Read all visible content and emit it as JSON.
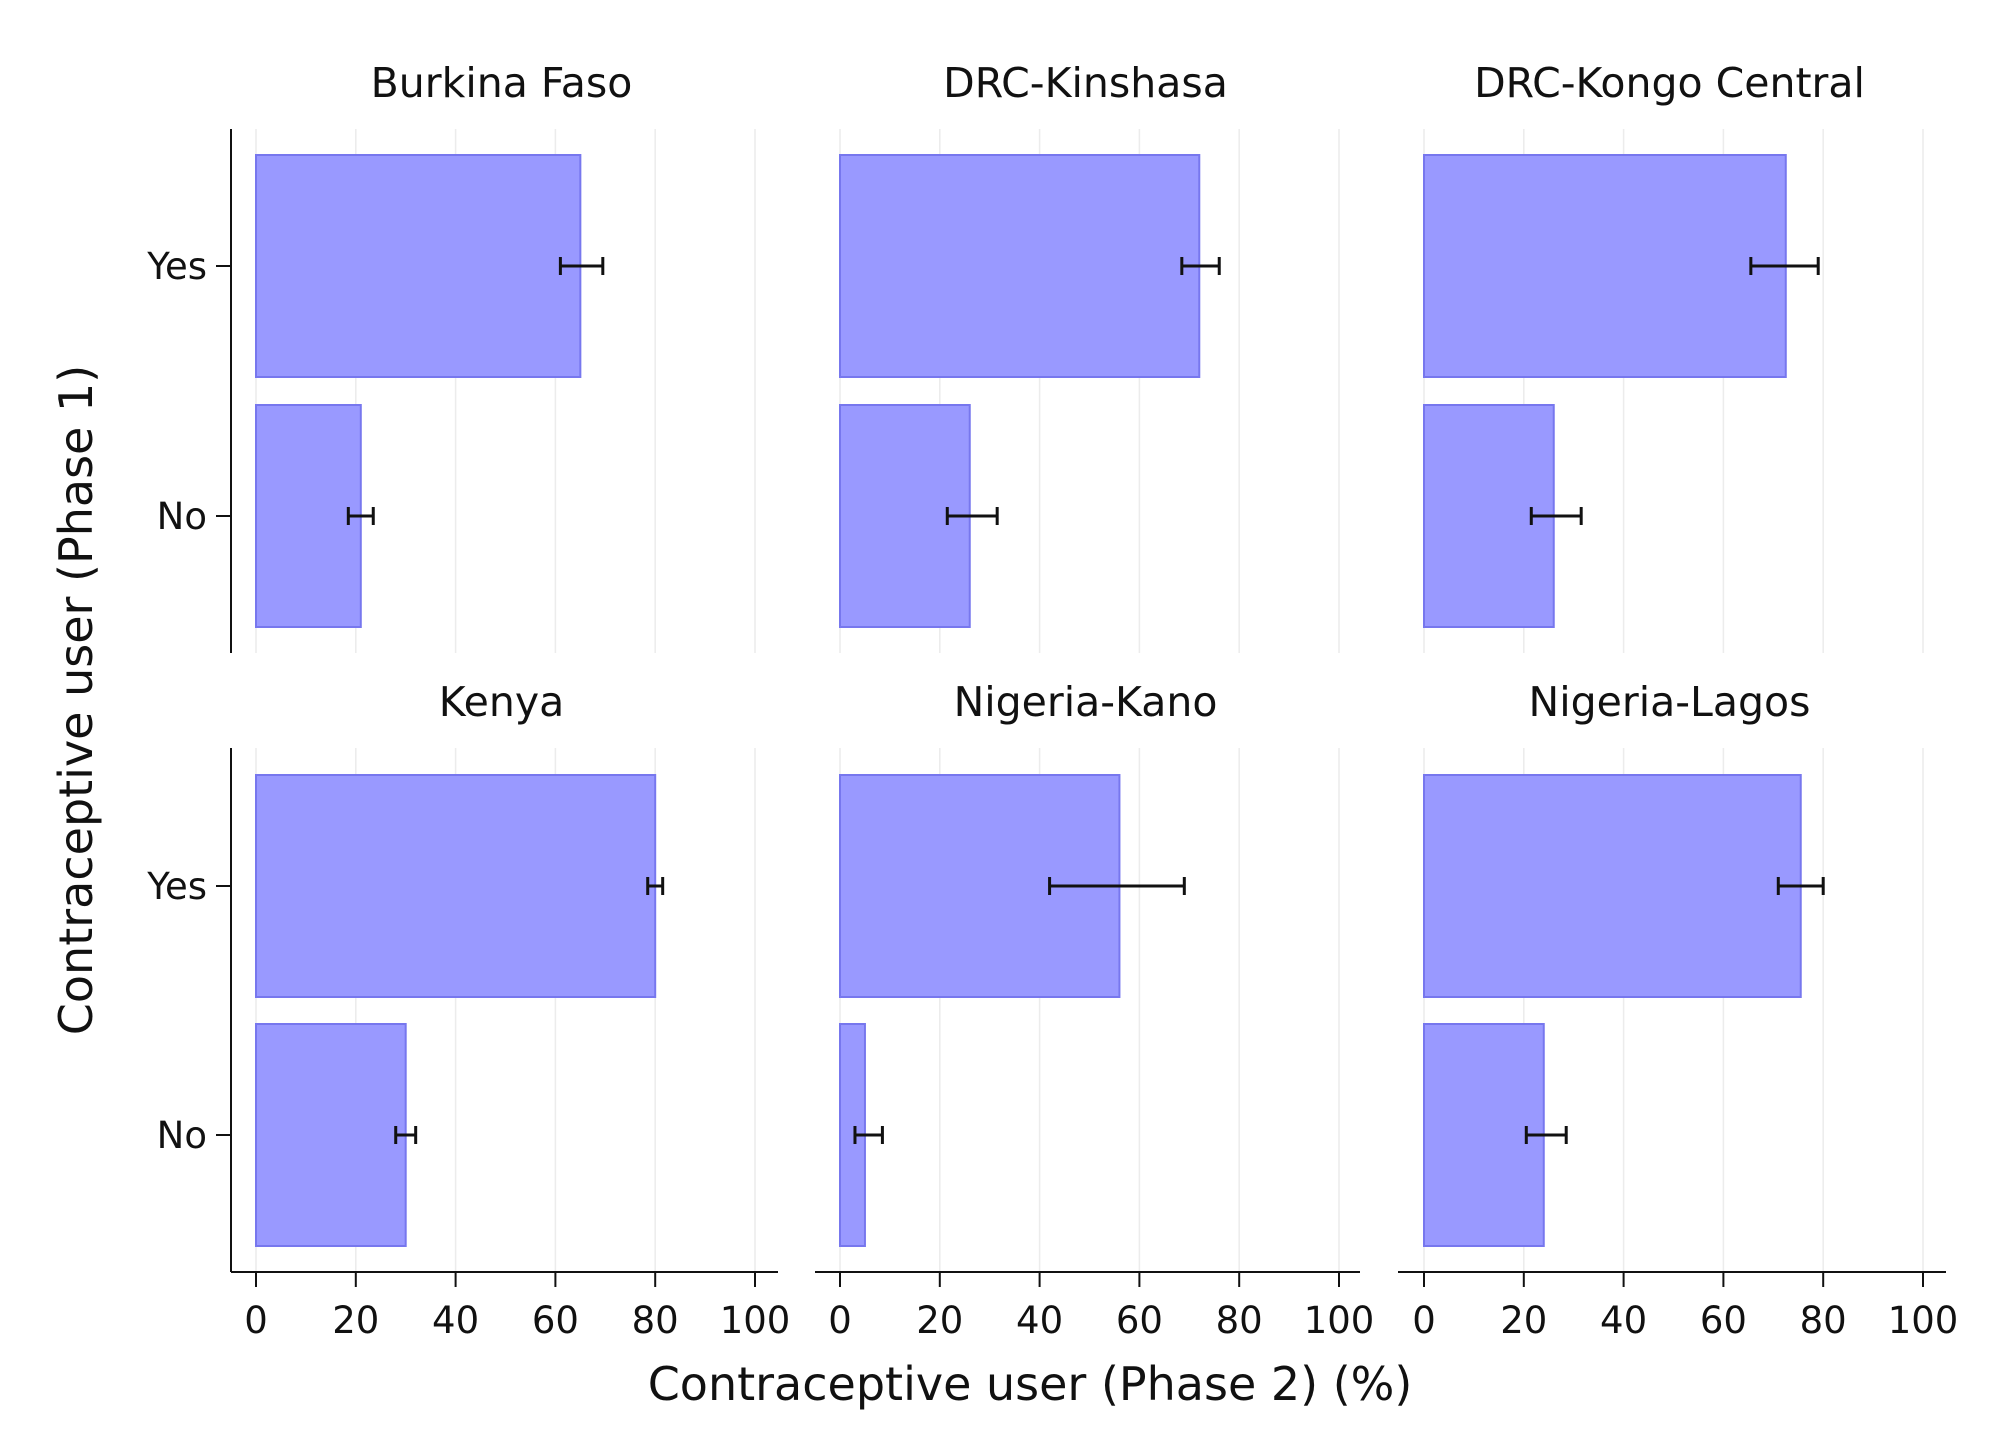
{
  "chart_data": {
    "type": "bar",
    "orientation": "horizontal",
    "xlabel": "Contraceptive user (Phase 2) (%)",
    "ylabel": "Contraceptive user (Phase 1)",
    "categories": [
      "Yes",
      "No"
    ],
    "xlim": [
      0,
      100
    ],
    "xticks": [
      0,
      20,
      40,
      60,
      80,
      100
    ],
    "grid": "vertical",
    "bar_color": "#9999ff",
    "bar_edge_color": "#7777ee",
    "errorbar_color": "#111111",
    "panels": [
      {
        "title": "Burkina Faso",
        "bars": [
          {
            "category": "Yes",
            "value": 65,
            "ci_low": 61,
            "ci_high": 69.5
          },
          {
            "category": "No",
            "value": 21,
            "ci_low": 18.5,
            "ci_high": 23.5
          }
        ]
      },
      {
        "title": "DRC-Kinshasa",
        "bars": [
          {
            "category": "Yes",
            "value": 72,
            "ci_low": 68.5,
            "ci_high": 76
          },
          {
            "category": "No",
            "value": 26,
            "ci_low": 21.5,
            "ci_high": 31.5
          }
        ]
      },
      {
        "title": "DRC-Kongo Central",
        "bars": [
          {
            "category": "Yes",
            "value": 72.5,
            "ci_low": 65.5,
            "ci_high": 79
          },
          {
            "category": "No",
            "value": 26,
            "ci_low": 21.5,
            "ci_high": 31.5
          }
        ]
      },
      {
        "title": "Kenya",
        "bars": [
          {
            "category": "Yes",
            "value": 80,
            "ci_low": 78.5,
            "ci_high": 81.5
          },
          {
            "category": "No",
            "value": 30,
            "ci_low": 28,
            "ci_high": 32
          }
        ]
      },
      {
        "title": "Nigeria-Kano",
        "bars": [
          {
            "category": "Yes",
            "value": 56,
            "ci_low": 42,
            "ci_high": 69
          },
          {
            "category": "No",
            "value": 5,
            "ci_low": 3,
            "ci_high": 8.5
          }
        ]
      },
      {
        "title": "Nigeria-Lagos",
        "bars": [
          {
            "category": "Yes",
            "value": 75.5,
            "ci_low": 71,
            "ci_high": 80
          },
          {
            "category": "No",
            "value": 24,
            "ci_low": 20.5,
            "ci_high": 28.5
          }
        ]
      }
    ]
  }
}
